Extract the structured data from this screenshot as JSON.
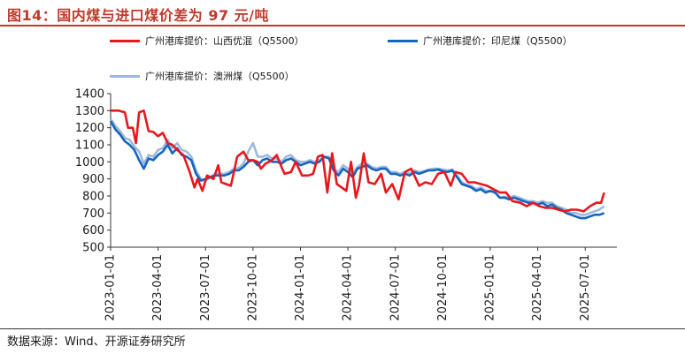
{
  "title": "图14：国内煤与进口煤价差为 97 元/吨",
  "source": "数据来源：Wind、开源证券研究所",
  "colors": {
    "accent": "#c0392b",
    "shanxi": "#e8171d",
    "indonesia": "#1565c0",
    "australia": "#9eb9dc"
  },
  "chart_data": {
    "type": "line",
    "title": "国内煤与进口煤价差为 97 元/吨",
    "xlabel": "",
    "ylabel": "",
    "ylim": [
      500,
      1400
    ],
    "yticks": [
      500,
      600,
      700,
      800,
      900,
      1000,
      1100,
      1200,
      1300,
      1400
    ],
    "xlim": [
      0,
      32
    ],
    "x_tick_positions": [
      0,
      3,
      6,
      9,
      12,
      15,
      18,
      21,
      24,
      27,
      30
    ],
    "x_tick_labels": [
      "2023-01-01",
      "2023-04-01",
      "2023-07-01",
      "2023-10-01",
      "2024-01-01",
      "2024-04-01",
      "2024-07-01",
      "2024-10-01",
      "2025-01-01",
      "2025-04-01",
      "2025-07-01"
    ],
    "legend_position": "top",
    "series": [
      {
        "name": "广州港库提价：山西优混（Q5500）",
        "color": "#e8171d",
        "x": [
          0,
          0.5,
          0.9,
          1.1,
          1.4,
          1.6,
          1.8,
          2.1,
          2.4,
          2.7,
          3.0,
          3.3,
          3.6,
          3.9,
          4.2,
          4.6,
          5.0,
          5.3,
          5.5,
          5.8,
          6.1,
          6.5,
          6.8,
          7.0,
          7.3,
          7.6,
          8.0,
          8.4,
          8.7,
          9.0,
          9.3,
          9.5,
          9.8,
          10.2,
          10.5,
          10.8,
          11.0,
          11.4,
          11.7,
          12.1,
          12.5,
          12.8,
          13.1,
          13.4,
          13.7,
          14.0,
          14.3,
          14.6,
          14.9,
          15.2,
          15.5,
          15.7,
          16.0,
          16.3,
          16.7,
          17.1,
          17.4,
          17.8,
          18.2,
          18.6,
          19.0,
          19.5,
          19.9,
          20.3,
          20.7,
          21.1,
          21.5,
          21.8,
          22.2,
          22.6,
          23.0,
          23.4,
          23.8,
          24.2,
          24.6,
          25.0,
          25.4,
          25.9,
          26.3,
          26.7,
          27.1,
          27.5,
          27.9,
          28.3,
          28.7,
          29.1,
          29.5,
          29.9,
          30.3,
          30.7,
          31.0,
          31.2
        ],
        "y": [
          1300,
          1300,
          1290,
          1200,
          1200,
          1110,
          1290,
          1300,
          1180,
          1175,
          1150,
          1170,
          1110,
          1100,
          1070,
          1040,
          940,
          850,
          900,
          830,
          920,
          900,
          980,
          880,
          870,
          860,
          1030,
          1060,
          1010,
          1010,
          1000,
          960,
          990,
          1010,
          1040,
          970,
          930,
          940,
          1000,
          920,
          920,
          930,
          1030,
          1040,
          820,
          1050,
          870,
          850,
          830,
          1000,
          790,
          860,
          1050,
          880,
          870,
          930,
          820,
          870,
          780,
          940,
          960,
          860,
          880,
          870,
          930,
          940,
          860,
          940,
          930,
          880,
          880,
          870,
          860,
          840,
          820,
          820,
          770,
          760,
          740,
          760,
          740,
          730,
          730,
          720,
          710,
          720,
          720,
          710,
          740,
          760,
          760,
          820
        ]
      },
      {
        "name": "广州港库提价：印尼煤（Q5500）",
        "color": "#1565c0",
        "x": [
          0,
          0.3,
          0.6,
          0.9,
          1.2,
          1.5,
          1.8,
          2.1,
          2.4,
          2.7,
          3.0,
          3.3,
          3.6,
          3.9,
          4.2,
          4.5,
          4.8,
          5.1,
          5.4,
          5.7,
          6.0,
          6.3,
          6.6,
          6.9,
          7.2,
          7.5,
          7.8,
          8.1,
          8.4,
          8.7,
          9.0,
          9.3,
          9.6,
          9.9,
          10.2,
          10.5,
          10.8,
          11.1,
          11.4,
          11.7,
          12.0,
          12.3,
          12.6,
          12.9,
          13.2,
          13.5,
          13.8,
          14.1,
          14.4,
          14.7,
          15.0,
          15.3,
          15.6,
          15.9,
          16.2,
          16.5,
          16.8,
          17.1,
          17.4,
          17.7,
          18.0,
          18.3,
          18.6,
          18.9,
          19.2,
          19.5,
          19.8,
          20.1,
          20.4,
          20.7,
          21.0,
          21.3,
          21.6,
          21.9,
          22.2,
          22.5,
          22.8,
          23.1,
          23.4,
          23.7,
          24.0,
          24.3,
          24.6,
          24.9,
          25.2,
          25.5,
          25.8,
          26.1,
          26.4,
          26.7,
          27.0,
          27.3,
          27.6,
          27.9,
          28.2,
          28.5,
          28.8,
          29.1,
          29.4,
          29.7,
          30.0,
          30.3,
          30.6,
          30.9,
          31.2
        ],
        "y": [
          1240,
          1190,
          1160,
          1120,
          1100,
          1070,
          1010,
          960,
          1020,
          1010,
          1040,
          1060,
          1100,
          1050,
          1080,
          1040,
          1030,
          1010,
          930,
          890,
          900,
          910,
          920,
          920,
          920,
          930,
          950,
          950,
          970,
          1000,
          1010,
          980,
          1010,
          1020,
          1000,
          1000,
          990,
          1010,
          1020,
          1000,
          980,
          990,
          1000,
          990,
          1000,
          1030,
          1020,
          950,
          920,
          960,
          940,
          910,
          960,
          970,
          980,
          960,
          950,
          960,
          960,
          930,
          930,
          920,
          930,
          920,
          940,
          930,
          940,
          950,
          950,
          955,
          945,
          940,
          950,
          910,
          870,
          860,
          850,
          830,
          840,
          820,
          830,
          820,
          790,
          790,
          780,
          790,
          780,
          770,
          760,
          760,
          750,
          760,
          740,
          750,
          730,
          720,
          700,
          690,
          680,
          670,
          670,
          680,
          690,
          690,
          700
        ]
      },
      {
        "name": "广州港库提价：澳洲煤（Q5500）",
        "color": "#9eb9dc",
        "x": [
          0,
          0.3,
          0.6,
          0.9,
          1.2,
          1.5,
          1.8,
          2.1,
          2.4,
          2.7,
          3.0,
          3.3,
          3.6,
          3.9,
          4.2,
          4.5,
          4.8,
          5.1,
          5.4,
          5.7,
          6.0,
          6.3,
          6.6,
          6.9,
          7.2,
          7.5,
          7.8,
          8.1,
          8.4,
          8.7,
          9.0,
          9.3,
          9.6,
          9.9,
          10.2,
          10.5,
          10.8,
          11.1,
          11.4,
          11.7,
          12.0,
          12.3,
          12.6,
          12.9,
          13.2,
          13.5,
          13.8,
          14.1,
          14.4,
          14.7,
          15.0,
          15.3,
          15.6,
          15.9,
          16.2,
          16.5,
          16.8,
          17.1,
          17.4,
          17.7,
          18.0,
          18.3,
          18.6,
          18.9,
          19.2,
          19.5,
          19.8,
          20.1,
          20.4,
          20.7,
          21.0,
          21.3,
          21.6,
          21.9,
          22.2,
          22.5,
          22.8,
          23.1,
          23.4,
          23.7,
          24.0,
          24.3,
          24.6,
          24.9,
          25.2,
          25.5,
          25.8,
          26.1,
          26.4,
          26.7,
          27.0,
          27.3,
          27.6,
          27.9,
          28.2,
          28.5,
          28.8,
          29.1,
          29.4,
          29.7,
          30.0,
          30.3,
          30.6,
          30.9,
          31.2
        ],
        "y": [
          1250,
          1210,
          1180,
          1140,
          1130,
          1090,
          1060,
          990,
          1040,
          1030,
          1070,
          1080,
          1130,
          1080,
          1110,
          1070,
          1060,
          1030,
          950,
          900,
          890,
          910,
          930,
          930,
          930,
          940,
          960,
          965,
          990,
          1060,
          1110,
          1030,
          1030,
          1040,
          1020,
          1020,
          1000,
          1030,
          1040,
          1010,
          1000,
          1000,
          1010,
          1000,
          1010,
          1030,
          1030,
          960,
          940,
          980,
          960,
          930,
          970,
          990,
          990,
          970,
          960,
          970,
          970,
          940,
          940,
          930,
          940,
          930,
          950,
          940,
          945,
          955,
          960,
          960,
          955,
          950,
          955,
          920,
          880,
          865,
          860,
          840,
          850,
          830,
          830,
          820,
          790,
          795,
          790,
          800,
          790,
          780,
          770,
          770,
          760,
          770,
          760,
          760,
          740,
          730,
          720,
          700,
          700,
          690,
          690,
          700,
          710,
          720,
          740
        ]
      }
    ]
  }
}
